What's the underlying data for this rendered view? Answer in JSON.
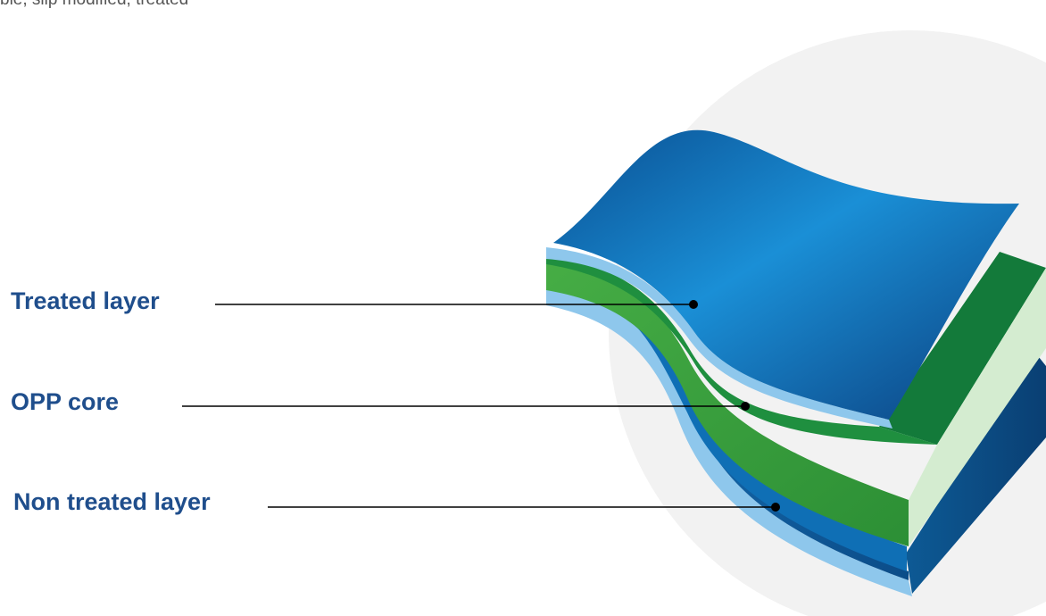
{
  "caption": "ble, slip modified, treated",
  "labels": [
    {
      "id": "treated",
      "text": "Treated layer"
    },
    {
      "id": "core",
      "text": "OPP core"
    },
    {
      "id": "nontreated",
      "text": "Non treated layer"
    }
  ],
  "colors": {
    "label_text": "#1f4e8c",
    "leader_line": "#000000",
    "backdrop_circle": "#f2f2f2",
    "treated_film": "#0b72b8",
    "core_film": "#3a9e3f",
    "nontreated_film": "#0d5a95",
    "film_edge": "#8ec7ec"
  }
}
